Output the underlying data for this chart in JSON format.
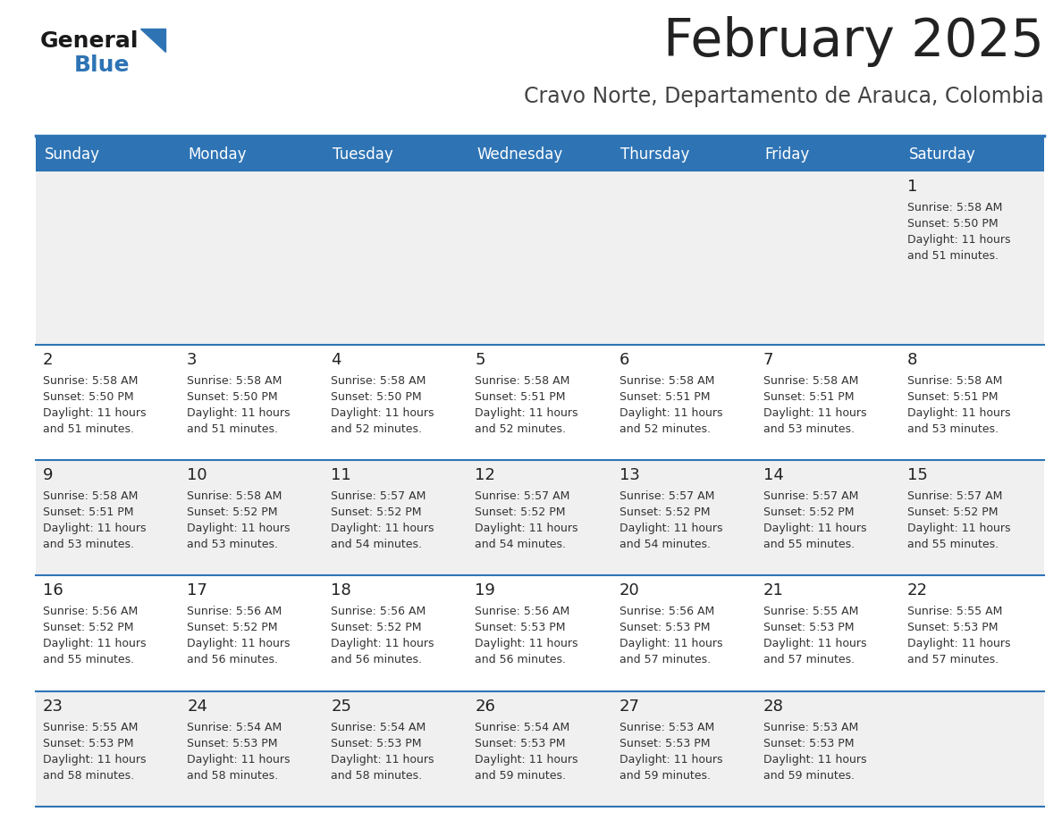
{
  "title": "February 2025",
  "subtitle": "Cravo Norte, Departamento de Arauca, Colombia",
  "header_bg_color": "#2E74B5",
  "header_text_color": "#FFFFFF",
  "day_headers": [
    "Sunday",
    "Monday",
    "Tuesday",
    "Wednesday",
    "Thursday",
    "Friday",
    "Saturday"
  ],
  "row_bg_colors": [
    "#F0F0F0",
    "#FFFFFF"
  ],
  "border_color": "#2E74B5",
  "title_color": "#222222",
  "subtitle_color": "#444444",
  "day_number_color": "#222222",
  "cell_text_color": "#333333",
  "logo_general_color": "#1A1A1A",
  "logo_blue_color": "#2E74B5",
  "days_data": [
    {
      "day": 1,
      "row": 0,
      "col": 6,
      "sunrise": "5:58 AM",
      "sunset": "5:50 PM",
      "daylight_hours": 11,
      "daylight_minutes": 51
    },
    {
      "day": 2,
      "row": 1,
      "col": 0,
      "sunrise": "5:58 AM",
      "sunset": "5:50 PM",
      "daylight_hours": 11,
      "daylight_minutes": 51
    },
    {
      "day": 3,
      "row": 1,
      "col": 1,
      "sunrise": "5:58 AM",
      "sunset": "5:50 PM",
      "daylight_hours": 11,
      "daylight_minutes": 51
    },
    {
      "day": 4,
      "row": 1,
      "col": 2,
      "sunrise": "5:58 AM",
      "sunset": "5:50 PM",
      "daylight_hours": 11,
      "daylight_minutes": 52
    },
    {
      "day": 5,
      "row": 1,
      "col": 3,
      "sunrise": "5:58 AM",
      "sunset": "5:51 PM",
      "daylight_hours": 11,
      "daylight_minutes": 52
    },
    {
      "day": 6,
      "row": 1,
      "col": 4,
      "sunrise": "5:58 AM",
      "sunset": "5:51 PM",
      "daylight_hours": 11,
      "daylight_minutes": 52
    },
    {
      "day": 7,
      "row": 1,
      "col": 5,
      "sunrise": "5:58 AM",
      "sunset": "5:51 PM",
      "daylight_hours": 11,
      "daylight_minutes": 53
    },
    {
      "day": 8,
      "row": 1,
      "col": 6,
      "sunrise": "5:58 AM",
      "sunset": "5:51 PM",
      "daylight_hours": 11,
      "daylight_minutes": 53
    },
    {
      "day": 9,
      "row": 2,
      "col": 0,
      "sunrise": "5:58 AM",
      "sunset": "5:51 PM",
      "daylight_hours": 11,
      "daylight_minutes": 53
    },
    {
      "day": 10,
      "row": 2,
      "col": 1,
      "sunrise": "5:58 AM",
      "sunset": "5:52 PM",
      "daylight_hours": 11,
      "daylight_minutes": 53
    },
    {
      "day": 11,
      "row": 2,
      "col": 2,
      "sunrise": "5:57 AM",
      "sunset": "5:52 PM",
      "daylight_hours": 11,
      "daylight_minutes": 54
    },
    {
      "day": 12,
      "row": 2,
      "col": 3,
      "sunrise": "5:57 AM",
      "sunset": "5:52 PM",
      "daylight_hours": 11,
      "daylight_minutes": 54
    },
    {
      "day": 13,
      "row": 2,
      "col": 4,
      "sunrise": "5:57 AM",
      "sunset": "5:52 PM",
      "daylight_hours": 11,
      "daylight_minutes": 54
    },
    {
      "day": 14,
      "row": 2,
      "col": 5,
      "sunrise": "5:57 AM",
      "sunset": "5:52 PM",
      "daylight_hours": 11,
      "daylight_minutes": 55
    },
    {
      "day": 15,
      "row": 2,
      "col": 6,
      "sunrise": "5:57 AM",
      "sunset": "5:52 PM",
      "daylight_hours": 11,
      "daylight_minutes": 55
    },
    {
      "day": 16,
      "row": 3,
      "col": 0,
      "sunrise": "5:56 AM",
      "sunset": "5:52 PM",
      "daylight_hours": 11,
      "daylight_minutes": 55
    },
    {
      "day": 17,
      "row": 3,
      "col": 1,
      "sunrise": "5:56 AM",
      "sunset": "5:52 PM",
      "daylight_hours": 11,
      "daylight_minutes": 56
    },
    {
      "day": 18,
      "row": 3,
      "col": 2,
      "sunrise": "5:56 AM",
      "sunset": "5:52 PM",
      "daylight_hours": 11,
      "daylight_minutes": 56
    },
    {
      "day": 19,
      "row": 3,
      "col": 3,
      "sunrise": "5:56 AM",
      "sunset": "5:53 PM",
      "daylight_hours": 11,
      "daylight_minutes": 56
    },
    {
      "day": 20,
      "row": 3,
      "col": 4,
      "sunrise": "5:56 AM",
      "sunset": "5:53 PM",
      "daylight_hours": 11,
      "daylight_minutes": 57
    },
    {
      "day": 21,
      "row": 3,
      "col": 5,
      "sunrise": "5:55 AM",
      "sunset": "5:53 PM",
      "daylight_hours": 11,
      "daylight_minutes": 57
    },
    {
      "day": 22,
      "row": 3,
      "col": 6,
      "sunrise": "5:55 AM",
      "sunset": "5:53 PM",
      "daylight_hours": 11,
      "daylight_minutes": 57
    },
    {
      "day": 23,
      "row": 4,
      "col": 0,
      "sunrise": "5:55 AM",
      "sunset": "5:53 PM",
      "daylight_hours": 11,
      "daylight_minutes": 58
    },
    {
      "day": 24,
      "row": 4,
      "col": 1,
      "sunrise": "5:54 AM",
      "sunset": "5:53 PM",
      "daylight_hours": 11,
      "daylight_minutes": 58
    },
    {
      "day": 25,
      "row": 4,
      "col": 2,
      "sunrise": "5:54 AM",
      "sunset": "5:53 PM",
      "daylight_hours": 11,
      "daylight_minutes": 58
    },
    {
      "day": 26,
      "row": 4,
      "col": 3,
      "sunrise": "5:54 AM",
      "sunset": "5:53 PM",
      "daylight_hours": 11,
      "daylight_minutes": 59
    },
    {
      "day": 27,
      "row": 4,
      "col": 4,
      "sunrise": "5:53 AM",
      "sunset": "5:53 PM",
      "daylight_hours": 11,
      "daylight_minutes": 59
    },
    {
      "day": 28,
      "row": 4,
      "col": 5,
      "sunrise": "5:53 AM",
      "sunset": "5:53 PM",
      "daylight_hours": 11,
      "daylight_minutes": 59
    }
  ],
  "num_rows": 5,
  "num_cols": 7
}
